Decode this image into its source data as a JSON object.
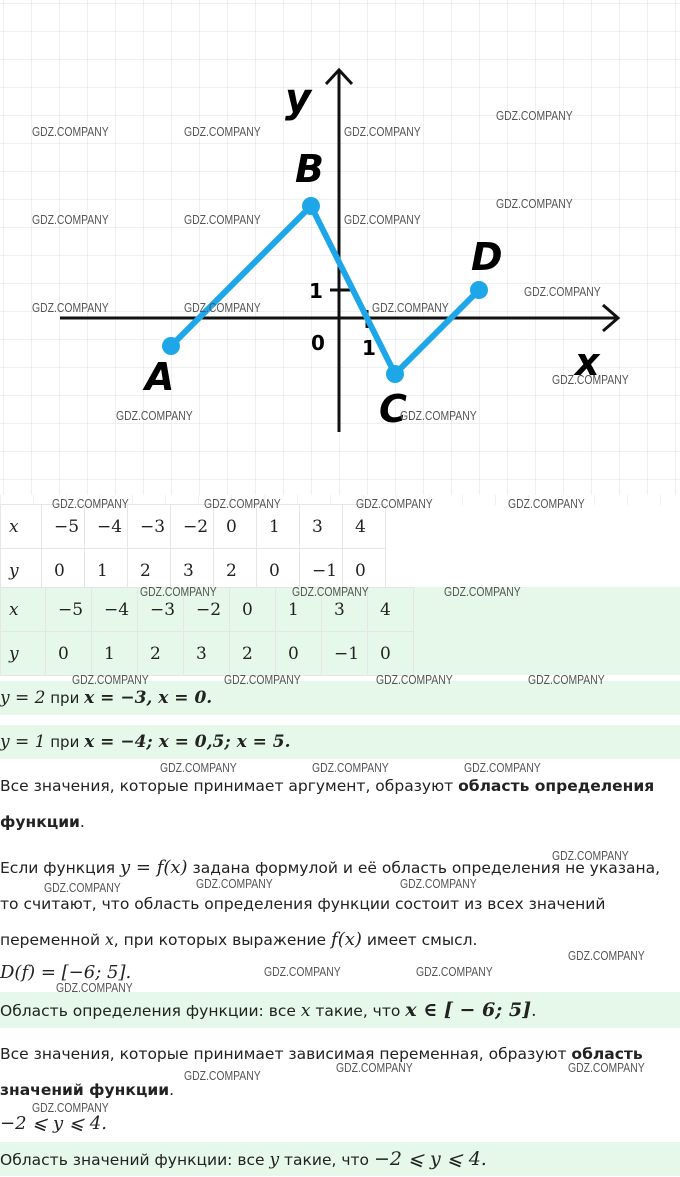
{
  "watermark": "GDZ.COMPANY",
  "graph": {
    "axis_x_label": "x",
    "axis_y_label": "y",
    "origin_label": "0",
    "tick_x_label": "1",
    "tick_y_label": "1",
    "line_color": "#1ea7e8",
    "points": [
      {
        "label": "A",
        "x": -6,
        "y": -1
      },
      {
        "label": "B",
        "x": -1,
        "y": 4
      },
      {
        "label": "C",
        "x": 2,
        "y": -2
      },
      {
        "label": "D",
        "x": 5,
        "y": 1
      }
    ]
  },
  "table1": {
    "x_header": "x",
    "y_header": "y",
    "x": [
      "−5",
      "−4",
      "−3",
      "−2",
      "0",
      "1",
      "3",
      "4"
    ],
    "y": [
      "0",
      "1",
      "2",
      "3",
      "2",
      "0",
      "−1",
      "0"
    ]
  },
  "table2": {
    "x_header": "x",
    "y_header": "y",
    "x": [
      "−5",
      "−4",
      "−3",
      "−2",
      "0",
      "1",
      "3",
      "4"
    ],
    "y": [
      "0",
      "1",
      "2",
      "3",
      "2",
      "0",
      "−1",
      "0"
    ]
  },
  "answers": {
    "line1_lhs": "y = 2",
    "line1_mid": " при ",
    "line1_rhs": "x = −3, x = 0.",
    "line2_lhs": "y = 1",
    "line2_mid": " при ",
    "line2_rhs": "x = −4; x = 0,5; x = 5."
  },
  "text": {
    "p1_a": "Все значения, которые принимает аргумент, образуют ",
    "p1_b": "область определения функции",
    "p1_c": ".",
    "p2_a": "Если функция ",
    "p2_f": "y = f(x)",
    "p2_b": " задана формулой и её область определения не указана, то считают, что область определения функции состоит из всех значений переменной ",
    "p2_x": "x",
    "p2_c": ", при которых выражение ",
    "p2_fx": "f(x)",
    "p2_d": " имеет смысл.",
    "domain_formula": "D(f) = [−6; 5].",
    "domain_a": "Область определения функции: все ",
    "domain_x": "x",
    "domain_b": " такие, что ",
    "domain_c": "x ∈ [ − 6; 5]",
    "domain_d": ".",
    "p3_a": "Все значения, которые принимает зависимая переменная, образуют ",
    "p3_b": "область значений функции",
    "p3_c": ".",
    "range_formula": "−2 ⩽ y ⩽ 4.",
    "range_a": "Область значений функции: все ",
    "range_y": "y",
    "range_b": " такие, что ",
    "range_c": "−2 ⩽ y ⩽ 4."
  }
}
